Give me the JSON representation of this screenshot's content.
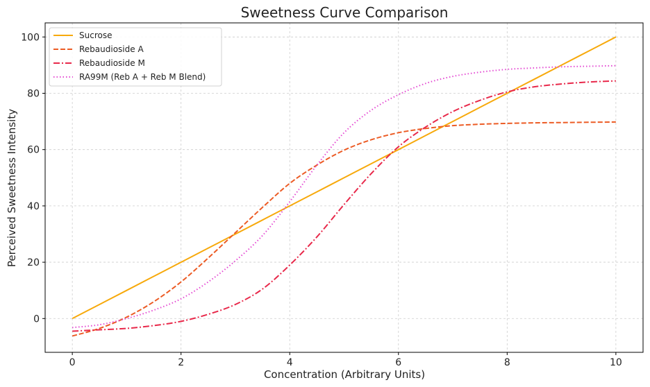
{
  "chart_data": {
    "type": "line",
    "title": "Sweetness Curve Comparison",
    "xlabel": "Concentration (Arbitrary Units)",
    "ylabel": "Perceived Sweetness Intensity",
    "xlim": [
      -0.5,
      10.5
    ],
    "ylim": [
      -12,
      105
    ],
    "xticks": [
      0,
      2,
      4,
      6,
      8,
      10
    ],
    "yticks": [
      0,
      20,
      40,
      60,
      80,
      100
    ],
    "grid": true,
    "legend_position": "top-left",
    "x": [
      0,
      0.5,
      1,
      1.5,
      2,
      2.5,
      3,
      3.5,
      4,
      4.5,
      5,
      5.5,
      6,
      6.5,
      7,
      7.5,
      8,
      8.5,
      9,
      9.5,
      10
    ],
    "series": [
      {
        "name": "Sucrose",
        "color": "#f7a90b",
        "dash": "solid",
        "values": [
          0,
          5,
          10,
          15,
          20,
          25,
          30,
          35,
          40,
          45,
          50,
          55,
          60,
          65,
          70,
          75,
          80,
          85,
          90,
          95,
          100
        ]
      },
      {
        "name": "Rebaudioside A",
        "color": "#ec5b24",
        "dash": "dashed",
        "values": [
          -6.2,
          -3.5,
          0.5,
          6,
          13,
          21.5,
          30.5,
          39.5,
          48,
          54.5,
          59.8,
          63.5,
          66,
          67.5,
          68.5,
          69,
          69.3,
          69.5,
          69.6,
          69.7,
          69.8
        ]
      },
      {
        "name": "Rebaudioside M",
        "color": "#e8284a",
        "dash": "dashdot",
        "values": [
          -4.5,
          -4,
          -3.5,
          -2.5,
          -1,
          1.5,
          5,
          10.5,
          19,
          29,
          40.5,
          51.5,
          61,
          68,
          73.5,
          77.5,
          80.5,
          82.3,
          83.3,
          84,
          84.4
        ]
      },
      {
        "name": "RA99M (Reb A + Reb M Blend)",
        "color": "#e44ad3",
        "dash": "dotted",
        "values": [
          -3.2,
          -2.2,
          0,
          3,
          7,
          13,
          20.5,
          29.5,
          41.5,
          54.5,
          66,
          74,
          79.5,
          83.5,
          86,
          87.5,
          88.5,
          89,
          89.4,
          89.6,
          89.8
        ]
      }
    ]
  }
}
